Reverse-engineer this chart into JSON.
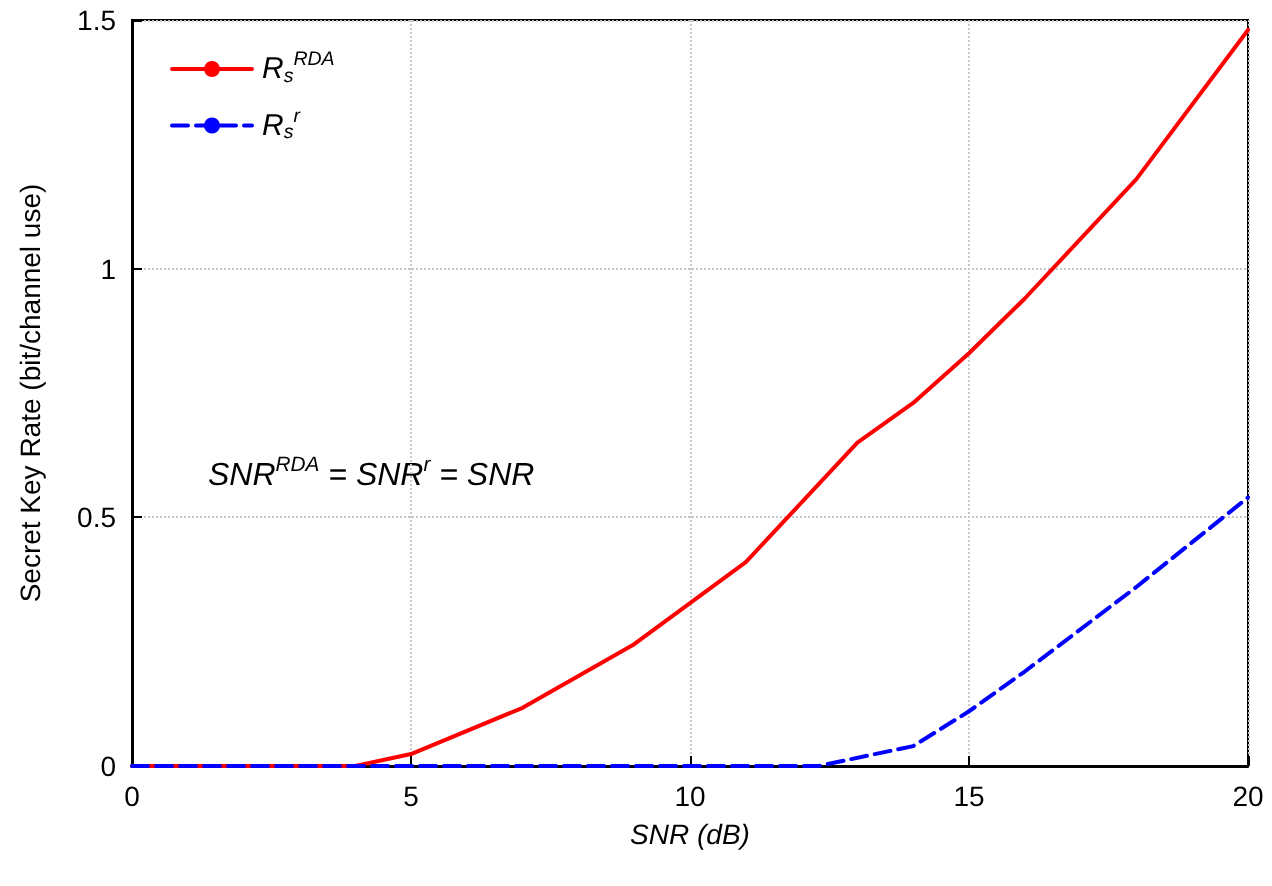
{
  "chart_data": {
    "type": "line",
    "xlabel": "SNR (dB)",
    "ylabel": "Secret Key Rate (bit/channel use)",
    "annotations": [
      "SNR$^{RDA}$ = SNR$^{r}$ = SNR"
    ],
    "series": [
      {
        "name": "R$_{s}$$^{RDA}$",
        "color": "#ff0000",
        "line_style": "solid",
        "x": [
          0,
          4,
          5,
          7,
          9,
          11,
          13,
          14,
          15,
          16,
          18,
          20
        ],
        "values": [
          0,
          0,
          0.024,
          0.117,
          0.245,
          0.41,
          0.65,
          0.73,
          0.83,
          0.94,
          1.18,
          1.48
        ]
      },
      {
        "name": "R$_{s}$$^{r}$",
        "color": "#0000ff",
        "line_style": "dashed",
        "x": [
          0,
          12.3,
          14,
          15,
          16,
          18,
          20
        ],
        "values": [
          0,
          0,
          0.04,
          0.11,
          0.19,
          0.36,
          0.54
        ]
      }
    ],
    "xlim": [
      0,
      20
    ],
    "xticks": [
      0,
      5,
      10,
      15,
      20
    ],
    "ylim": [
      0,
      1.5
    ],
    "yticks": [
      0,
      0.5,
      1,
      1.5
    ],
    "grid": true,
    "legend": "top left",
    "marker": "none"
  }
}
